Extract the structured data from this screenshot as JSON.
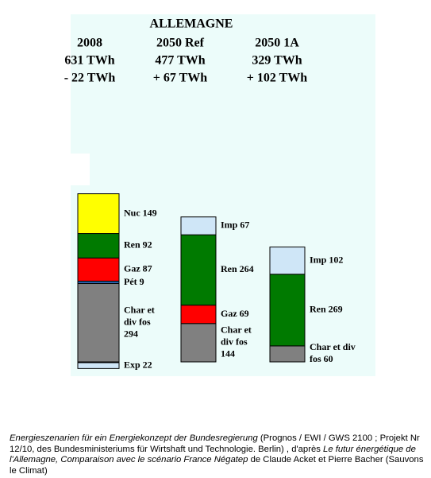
{
  "chart_data": {
    "type": "stacked-bar",
    "title": "ALLEMAGNE",
    "columns": [
      {
        "name": "2008",
        "total_label": "631 TWh",
        "balance_label": "- 22 TWh",
        "segments": [
          {
            "label": [
              "Exp 22"
            ],
            "value": 22,
            "color": "#cfe6f7",
            "direction": "down"
          },
          {
            "label": [
              "Char et",
              "div fos",
              "294"
            ],
            "value": 294,
            "color": "#808080"
          },
          {
            "label": [
              "Pét 9"
            ],
            "value": 9,
            "color": "#2a5fa8"
          },
          {
            "label": [
              "Gaz 87"
            ],
            "value": 87,
            "color": "#ff0000"
          },
          {
            "label": [
              "Ren  92"
            ],
            "value": 92,
            "color": "#007a00"
          },
          {
            "label": [
              "Nuc 149"
            ],
            "value": 149,
            "color": "#ffff00"
          }
        ]
      },
      {
        "name": "2050 Ref",
        "total_label": "477 TWh",
        "balance_label": "+ 67 TWh",
        "segments": [
          {
            "label": [
              "Char et",
              "div fos",
              "144"
            ],
            "value": 144,
            "color": "#808080"
          },
          {
            "label": [
              "Gaz 69"
            ],
            "value": 69,
            "color": "#ff0000"
          },
          {
            "label": [
              "Ren 264"
            ],
            "value": 264,
            "color": "#007a00"
          },
          {
            "label": [
              "Imp 67"
            ],
            "value": 67,
            "color": "#cfe6f7"
          }
        ]
      },
      {
        "name": "2050 1A",
        "total_label": "329 TWh",
        "balance_label": "+ 102 TWh",
        "segments": [
          {
            "label": [
              "Char et div",
              "fos 60"
            ],
            "value": 60,
            "color": "#808080"
          },
          {
            "label": [
              "Ren 269"
            ],
            "value": 269,
            "color": "#007a00"
          },
          {
            "label": [
              "Imp 102"
            ],
            "value": 102,
            "color": "#cfe6f7"
          }
        ]
      }
    ]
  },
  "caption": [
    {
      "text": "Energieszenarien für ein Energiekonzept der Bundesregierung",
      "italic": true
    },
    {
      "text": "  (Prognos / EWI / GWS 2100 ; Projekt Nr 12/10, des Bundesministeriums für Wirtshaft und Technologie. Berlin) , d'après ",
      "italic": false
    },
    {
      "text": "Le futur énergétique de l'Allemagne, Comparaison avec le scénario France Négatep",
      "italic": true
    },
    {
      "text": " de Claude Acket et Pierre Bacher (Sauvons le Climat)",
      "italic": false
    }
  ]
}
